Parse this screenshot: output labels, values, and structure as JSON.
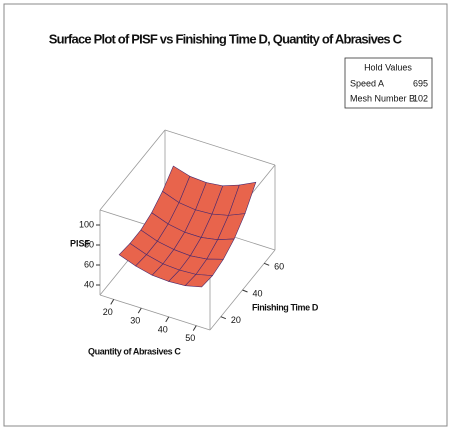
{
  "chart_data": {
    "type": "surface",
    "title": "Surface Plot of PISF vs Finishing Time D, Quantity of Abrasives C",
    "zlabel": "PISF",
    "xlabel": "Quantity of Abrasives C",
    "ylabel": "Finishing Time D",
    "x": [
      20,
      26,
      32,
      38,
      44,
      50
    ],
    "y": [
      15,
      25,
      35,
      45,
      55,
      65
    ],
    "z": [
      [
        68,
        62,
        58,
        57,
        58,
        62
      ],
      [
        66,
        60,
        56,
        55,
        56,
        60
      ],
      [
        66,
        60,
        57,
        56,
        58,
        63
      ],
      [
        70,
        64,
        61,
        61,
        64,
        70
      ],
      [
        78,
        72,
        70,
        71,
        75,
        82
      ],
      [
        90,
        85,
        84,
        86,
        92,
        100
      ]
    ],
    "xlim": [
      15,
      55
    ],
    "ylim": [
      10,
      70
    ],
    "zlim": [
      30,
      115
    ],
    "xticks": [
      20,
      30,
      40,
      50
    ],
    "yticks": [
      20,
      40,
      60
    ],
    "zticks": [
      40,
      60,
      80,
      100
    ],
    "color": "#e8644c",
    "back_color": "#6a3f9c",
    "mesh_color": "#4b2a6e",
    "hold_values": {
      "title": "Hold Values",
      "items": [
        {
          "name": "Speed A",
          "value": 695
        },
        {
          "name": "Mesh Number B",
          "value": 102
        }
      ]
    }
  }
}
